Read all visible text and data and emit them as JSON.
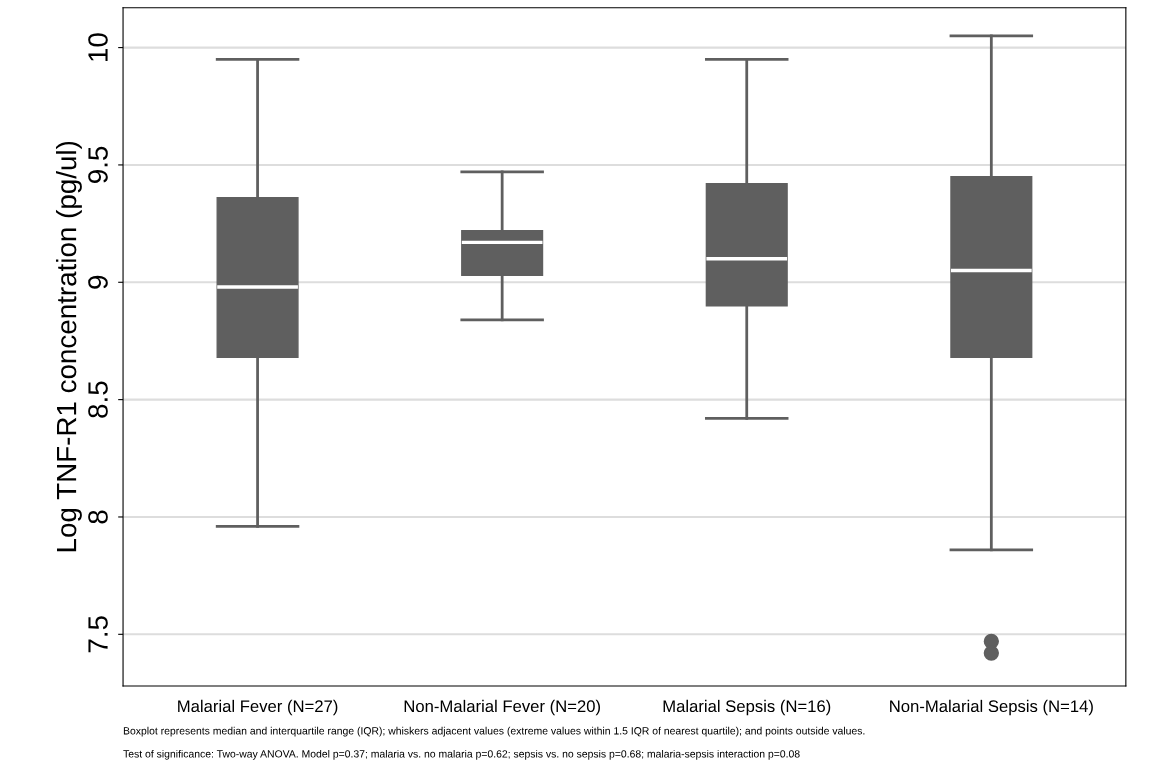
{
  "chart_data": {
    "type": "box",
    "ylabel": "Log TNF-R1 concentration (pg/ul)",
    "categories": [
      "Malarial Fever (N=27)",
      "Non-Malarial Fever (N=20)",
      "Malarial Sepsis (N=16)",
      "Non-Malarial Sepsis (N=14)"
    ],
    "color": "#5f5f5f",
    "boxes": [
      {
        "low": 7.96,
        "q1": 8.68,
        "median": 8.98,
        "q3": 9.36,
        "high": 9.95
      },
      {
        "low": 8.84,
        "q1": 9.03,
        "median": 9.17,
        "q3": 9.22,
        "high": 9.47
      },
      {
        "low": 8.42,
        "q1": 8.9,
        "median": 9.1,
        "q3": 9.42,
        "high": 9.95
      },
      {
        "low": 7.86,
        "q1": 8.68,
        "median": 9.05,
        "q3": 9.45,
        "high": 10.05,
        "outliers": [
          7.47,
          7.42
        ]
      }
    ],
    "ylim": [
      7.28,
      10.17
    ],
    "yticks": [
      7.5,
      8,
      8.5,
      9,
      9.5,
      10
    ],
    "grid": "y",
    "annotations": [
      "Boxplot represents median and interquartile range (IQR); whiskers adjacent values (extreme values within 1.5 IQR of nearest quartile); and points outside values.",
      "Test of significance: Two-way ANOVA. Model p=0.37; malaria vs. no malaria p=0.62; sepsis vs. no sepsis p=0.68; malaria-sepsis interaction p=0.08"
    ]
  }
}
